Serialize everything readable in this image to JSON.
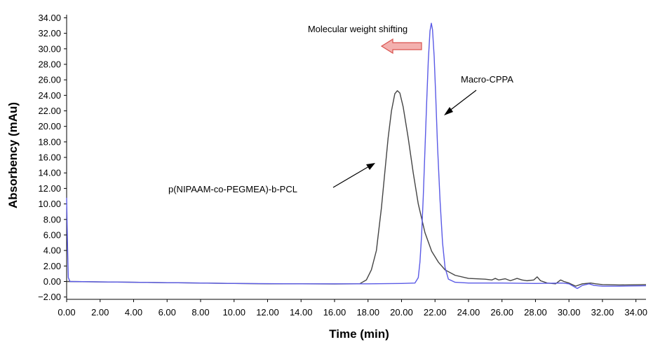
{
  "chart_data": {
    "type": "line",
    "xlabel": "Time (min)",
    "ylabel": "Absorbency (mAu)",
    "xlim": [
      0,
      34.6
    ],
    "ylim": [
      -2.3,
      34.4
    ],
    "x_ticks": [
      "0.00",
      "2.00",
      "4.00",
      "6.00",
      "8.00",
      "10.00",
      "12.00",
      "14.00",
      "16.00",
      "18.00",
      "20.00",
      "22.00",
      "24.00",
      "26.00",
      "28.00",
      "30.00",
      "32.00",
      "34.00"
    ],
    "y_ticks": [
      "34.00",
      "32.00",
      "30.00",
      "28.00",
      "26.00",
      "24.00",
      "22.00",
      "20.00",
      "18.00",
      "16.00",
      "14.00",
      "12.00",
      "10.00",
      "8.00",
      "6.00",
      "4.00",
      "2.00",
      "0.00",
      "−2.00"
    ],
    "x_tick_values": [
      0,
      2,
      4,
      6,
      8,
      10,
      12,
      14,
      16,
      18,
      20,
      22,
      24,
      26,
      28,
      30,
      32,
      34
    ],
    "y_tick_values": [
      34,
      32,
      30,
      28,
      26,
      24,
      22,
      20,
      18,
      16,
      14,
      12,
      10,
      8,
      6,
      4,
      2,
      0,
      -2
    ],
    "grid": false,
    "series": [
      {
        "name": "p(NIPAAM-co-PEGMEA)-b-PCL",
        "color": "#444444",
        "points": [
          [
            0,
            0
          ],
          [
            2,
            -0.05
          ],
          [
            4,
            -0.1
          ],
          [
            6,
            -0.15
          ],
          [
            8,
            -0.2
          ],
          [
            10,
            -0.25
          ],
          [
            12,
            -0.3
          ],
          [
            14,
            -0.3
          ],
          [
            16,
            -0.32
          ],
          [
            17.5,
            -0.3
          ],
          [
            17.9,
            0.2
          ],
          [
            18.2,
            1.5
          ],
          [
            18.5,
            4.0
          ],
          [
            18.8,
            9.5
          ],
          [
            19.0,
            14.0
          ],
          [
            19.2,
            18.5
          ],
          [
            19.4,
            22.0
          ],
          [
            19.6,
            24.2
          ],
          [
            19.75,
            24.6
          ],
          [
            19.9,
            24.3
          ],
          [
            20.1,
            22.5
          ],
          [
            20.4,
            18.5
          ],
          [
            20.7,
            14.0
          ],
          [
            21.0,
            10.0
          ],
          [
            21.4,
            6.3
          ],
          [
            21.8,
            3.9
          ],
          [
            22.2,
            2.5
          ],
          [
            22.6,
            1.5
          ],
          [
            23.2,
            0.8
          ],
          [
            24,
            0.4
          ],
          [
            25,
            0.3
          ],
          [
            25.4,
            0.2
          ],
          [
            25.6,
            0.4
          ],
          [
            25.8,
            0.2
          ],
          [
            26.2,
            0.35
          ],
          [
            26.5,
            0.1
          ],
          [
            26.9,
            0.4
          ],
          [
            27.2,
            0.2
          ],
          [
            27.5,
            0.1
          ],
          [
            27.9,
            0.2
          ],
          [
            28.1,
            0.6
          ],
          [
            28.3,
            0.1
          ],
          [
            28.7,
            -0.2
          ],
          [
            29.2,
            -0.3
          ],
          [
            29.5,
            0.2
          ],
          [
            29.7,
            0.0
          ],
          [
            30.0,
            -0.2
          ],
          [
            30.4,
            -0.6
          ],
          [
            30.8,
            -0.3
          ],
          [
            31.3,
            -0.2
          ],
          [
            31.6,
            -0.3
          ],
          [
            32,
            -0.4
          ],
          [
            33,
            -0.45
          ],
          [
            34.6,
            -0.4
          ]
        ]
      },
      {
        "name": "Macro-CPPA",
        "color": "#5a5ae6",
        "points": [
          [
            0,
            10.8
          ],
          [
            0.05,
            5.0
          ],
          [
            0.1,
            0.5
          ],
          [
            0.2,
            0.0
          ],
          [
            2,
            -0.05
          ],
          [
            4,
            -0.1
          ],
          [
            6,
            -0.15
          ],
          [
            8,
            -0.2
          ],
          [
            10,
            -0.25
          ],
          [
            12,
            -0.28
          ],
          [
            14,
            -0.3
          ],
          [
            16,
            -0.3
          ],
          [
            18,
            -0.3
          ],
          [
            20,
            -0.25
          ],
          [
            20.8,
            -0.2
          ],
          [
            21.0,
            0.5
          ],
          [
            21.1,
            2.5
          ],
          [
            21.2,
            6.0
          ],
          [
            21.3,
            11.0
          ],
          [
            21.4,
            17.0
          ],
          [
            21.5,
            23.0
          ],
          [
            21.6,
            28.5
          ],
          [
            21.7,
            32.3
          ],
          [
            21.78,
            33.3
          ],
          [
            21.85,
            32.5
          ],
          [
            21.95,
            29.0
          ],
          [
            22.05,
            23.5
          ],
          [
            22.15,
            17.5
          ],
          [
            22.3,
            10.5
          ],
          [
            22.45,
            5.0
          ],
          [
            22.6,
            1.8
          ],
          [
            22.8,
            0.3
          ],
          [
            23.2,
            -0.1
          ],
          [
            24,
            -0.2
          ],
          [
            26,
            -0.2
          ],
          [
            28,
            -0.25
          ],
          [
            29.6,
            -0.2
          ],
          [
            30.0,
            -0.3
          ],
          [
            30.5,
            -0.9
          ],
          [
            30.8,
            -0.5
          ],
          [
            31.2,
            -0.3
          ],
          [
            31.5,
            -0.5
          ],
          [
            32,
            -0.6
          ],
          [
            33,
            -0.6
          ],
          [
            34.6,
            -0.55
          ]
        ]
      }
    ],
    "annotations": [
      {
        "text": "Molecular weight shifting"
      },
      {
        "text": "Macro-CPPA"
      },
      {
        "text": "p(NIPAAM-co-PEGMEA)-b-PCL"
      }
    ],
    "arrow_colors": {
      "fill": "#f3b0ae",
      "stroke": "#d9534f"
    }
  }
}
